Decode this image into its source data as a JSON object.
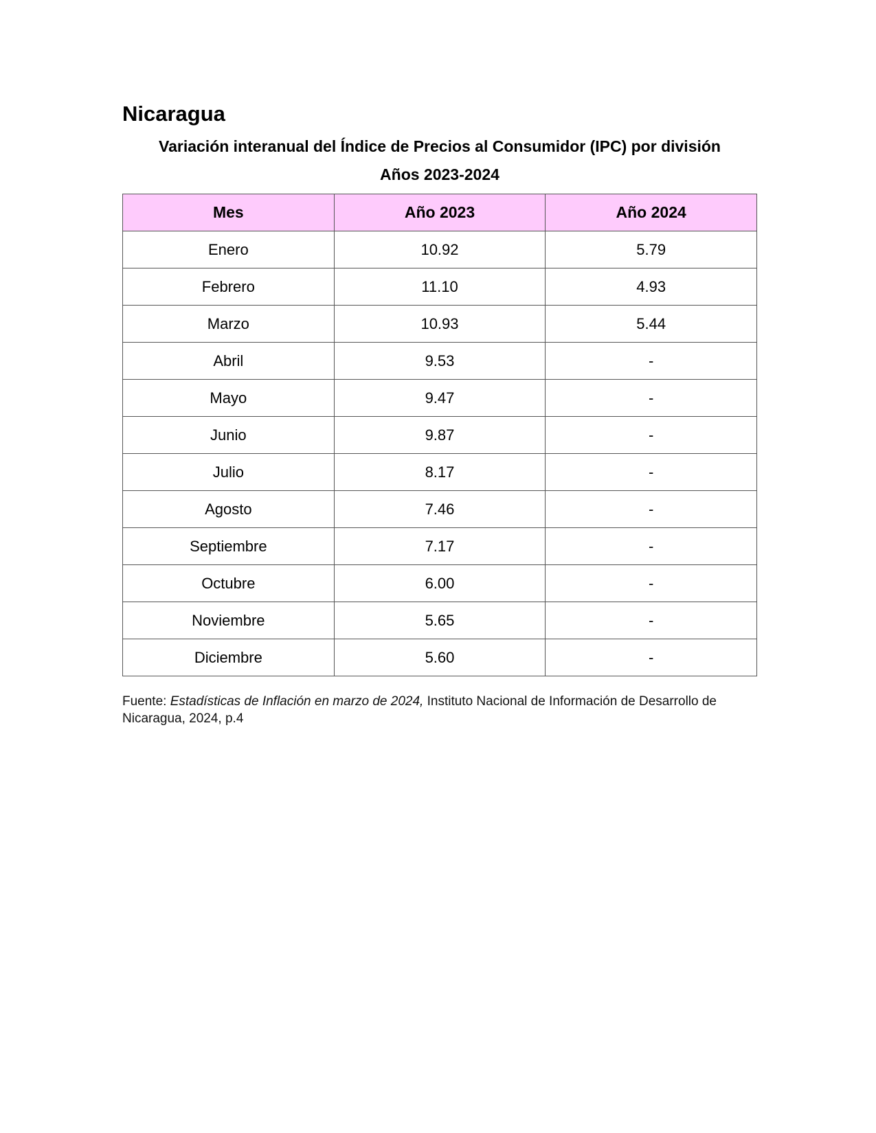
{
  "country": "Nicaragua",
  "title": "Variación interanual del Índice de Precios al Consumidor (IPC) por división",
  "subtitle": "Años 2023-2024",
  "table": {
    "headers": [
      "Mes",
      "Año 2023",
      "Año 2024"
    ],
    "rows": [
      [
        "Enero",
        "10.92",
        "5.79"
      ],
      [
        "Febrero",
        "11.10",
        "4.93"
      ],
      [
        "Marzo",
        "10.93",
        "5.44"
      ],
      [
        "Abril",
        "9.53",
        "-"
      ],
      [
        "Mayo",
        "9.47",
        "-"
      ],
      [
        "Junio",
        "9.87",
        "-"
      ],
      [
        "Julio",
        "8.17",
        "-"
      ],
      [
        "Agosto",
        "7.46",
        "-"
      ],
      [
        "Septiembre",
        "7.17",
        "-"
      ],
      [
        "Octubre",
        "6.00",
        "-"
      ],
      [
        "Noviembre",
        "5.65",
        "-"
      ],
      [
        "Diciembre",
        "5.60",
        "-"
      ]
    ]
  },
  "source": {
    "label": "Fuente: ",
    "title": "Estadísticas de Inflación en marzo de 2024,",
    "rest": " Instituto Nacional de Información de Desarrollo de Nicaragua, 2024, p.4"
  },
  "colors": {
    "header_bg": "#fecbfc",
    "border": "#555555"
  }
}
